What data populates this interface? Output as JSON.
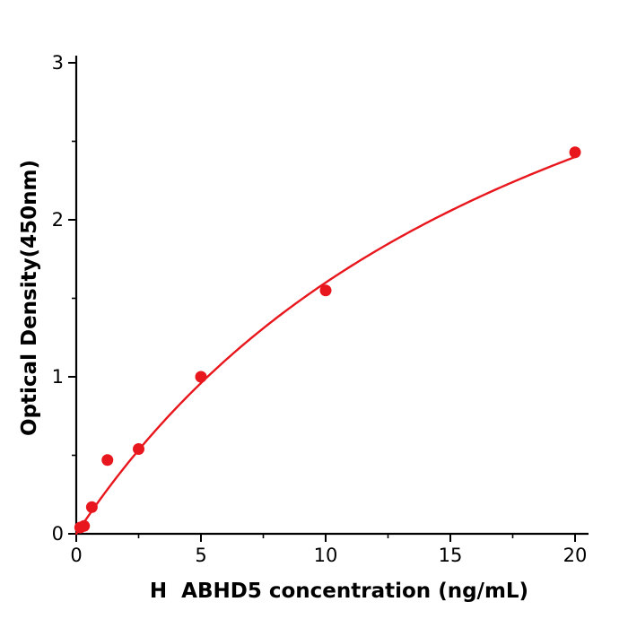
{
  "chart_data": {
    "type": "scatter",
    "xlabel": "H  ABHD5 concentration (ng/mL)",
    "ylabel": "Optical Density(450nm)",
    "x": [
      0.156,
      0.313,
      0.625,
      1.25,
      2.5,
      5,
      10,
      20
    ],
    "y": [
      0.04,
      0.05,
      0.17,
      0.47,
      0.54,
      1.0,
      1.55,
      2.43
    ],
    "xlim": [
      0,
      20.5
    ],
    "ylim": [
      0,
      3
    ],
    "x_ticks": [
      0,
      5,
      10,
      15,
      20
    ],
    "y_ticks": [
      0,
      1,
      2,
      3
    ],
    "x_minor_ticks": [
      2.5,
      7.5,
      12.5,
      17.5
    ],
    "y_minor_ticks": [
      0.5,
      1.5,
      2.5
    ],
    "grid": false,
    "legend": false,
    "point_color": "#e8171d",
    "line_color": "#e8171d",
    "axis_color": "#000000",
    "fit": {
      "type": "michaelis_menten",
      "vmax": 4.8,
      "km": 20
    }
  }
}
